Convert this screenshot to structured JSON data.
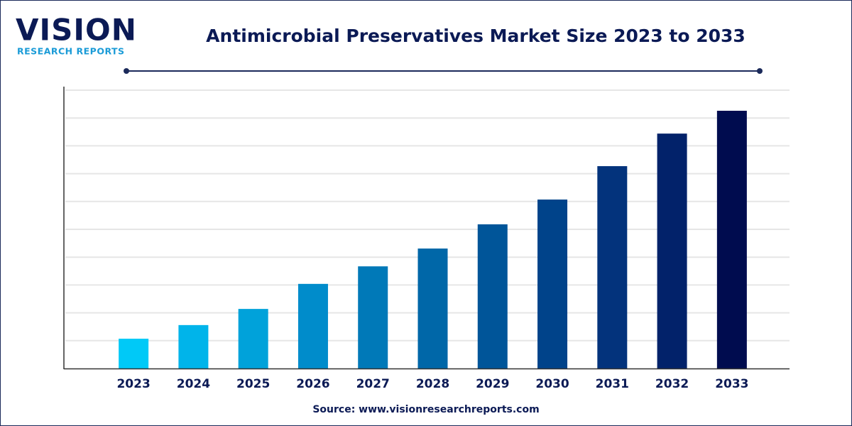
{
  "logo": {
    "name": "VISION",
    "tagline": "RESEARCH REPORTS"
  },
  "chart_data": {
    "type": "bar",
    "title": "Antimicrobial Preservatives Market Size 2023 to 2033",
    "source": "Source: www.visionresearchreports.com",
    "categories": [
      "2023",
      "2024",
      "2025",
      "2026",
      "2027",
      "2028",
      "2029",
      "2030",
      "2031",
      "2032",
      "2033"
    ],
    "values": [
      1.07,
      1.56,
      2.14,
      3.04,
      3.67,
      4.31,
      5.18,
      6.07,
      7.27,
      8.44,
      9.26
    ],
    "colors": [
      "#00c9f7",
      "#00b4ea",
      "#00a2da",
      "#008ccb",
      "#0079b8",
      "#0067a8",
      "#005599",
      "#00438a",
      "#03337c",
      "#02226a",
      "#000c4f"
    ],
    "ylim": [
      0,
      10
    ],
    "yticks": [
      1,
      2,
      3,
      4,
      5,
      6,
      7,
      8,
      9,
      10
    ],
    "grid": true
  }
}
